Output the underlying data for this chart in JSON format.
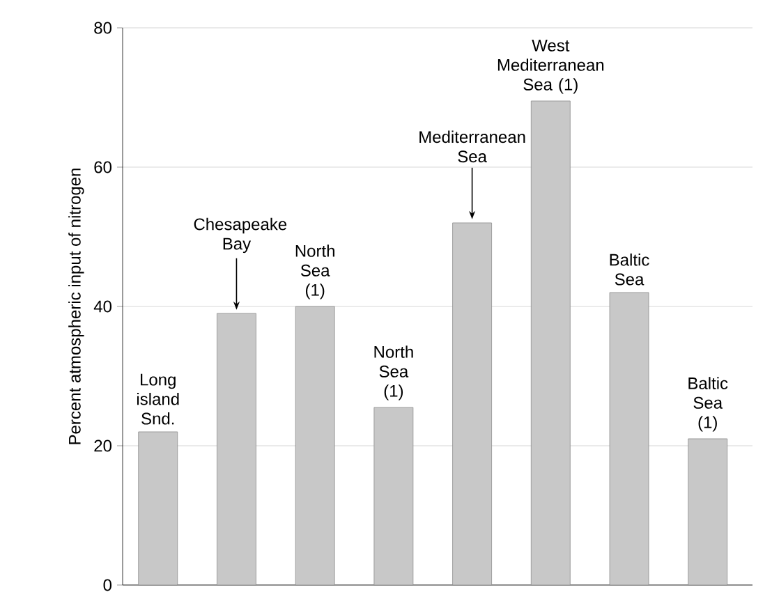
{
  "chart_data": {
    "type": "bar",
    "ylabel": "Percent atmospheric input of nitrogen",
    "categories": [
      "Long island Snd.",
      "Chesapeake Bay",
      "North Sea (1)",
      "North Sea (1)",
      "Mediterranean Sea",
      "West Mediterranean Sea (1)",
      "Baltic Sea",
      "Baltic Sea (1)"
    ],
    "values": [
      22,
      39,
      40,
      25.5,
      52,
      69.5,
      42,
      21
    ],
    "color": "#c8c8c8",
    "ylim": [
      0,
      80
    ],
    "yticks": [
      0,
      20,
      40,
      60,
      80
    ],
    "grid": "y"
  }
}
